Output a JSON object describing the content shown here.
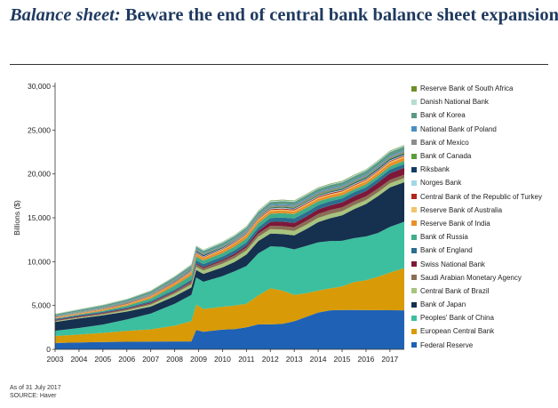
{
  "title": {
    "lead": "Balance sheet:",
    "rest": " Beware the end of central bank balance sheet expansion"
  },
  "footnotes": {
    "date": "As of 31 July 2017",
    "source": "SOURCE: Haver"
  },
  "chart_data": {
    "type": "area",
    "stacked": true,
    "title": "Balance sheet: Beware the end of central bank balance sheet expansion",
    "xlabel": "",
    "ylabel": "Billions ($)",
    "ylim": [
      0,
      30000
    ],
    "yticks": [
      0,
      5000,
      10000,
      15000,
      20000,
      25000,
      30000
    ],
    "ytick_labels": [
      "0",
      "5,000",
      "10,000",
      "15,000",
      "20,000",
      "25,000",
      "30,000"
    ],
    "xlim": [
      2003,
      2017.6
    ],
    "xticks": [
      2003,
      2004,
      2005,
      2006,
      2007,
      2008,
      2009,
      2010,
      2011,
      2012,
      2013,
      2014,
      2015,
      2016,
      2017
    ],
    "xtick_labels": [
      "2003",
      "2004",
      "2005",
      "2006",
      "2007",
      "2008",
      "2009",
      "2010",
      "2011",
      "2012",
      "2013",
      "2014",
      "2015",
      "2016",
      "2017"
    ],
    "x": [
      2003,
      2004,
      2005,
      2006,
      2007,
      2008,
      2008.7,
      2008.9,
      2009.2,
      2010,
      2010.5,
      2011,
      2011.5,
      2012,
      2012.5,
      2013,
      2013.5,
      2014,
      2014.5,
      2015,
      2015.5,
      2016,
      2016.5,
      2017,
      2017.6
    ],
    "legend_position": "right",
    "series": [
      {
        "name": "Federal Reserve",
        "color": "#1f62b5",
        "values": [
          720,
          780,
          830,
          860,
          880,
          900,
          900,
          2200,
          2000,
          2250,
          2300,
          2500,
          2850,
          2850,
          2900,
          3200,
          3700,
          4200,
          4450,
          4480,
          4480,
          4470,
          4470,
          4460,
          4450
        ]
      },
      {
        "name": "European Central Bank",
        "color": "#d89a07",
        "values": [
          800,
          900,
          1050,
          1250,
          1400,
          1800,
          2300,
          2900,
          2600,
          2600,
          2700,
          2700,
          3300,
          4100,
          3800,
          3000,
          2700,
          2500,
          2500,
          2700,
          3200,
          3400,
          3800,
          4300,
          4800
        ]
      },
      {
        "name": "Peoples' Bank of China",
        "color": "#3bbf9f",
        "values": [
          600,
          750,
          950,
          1300,
          1800,
          2500,
          3000,
          3100,
          3100,
          3500,
          3900,
          4300,
          4800,
          4800,
          5000,
          5200,
          5400,
          5500,
          5400,
          5200,
          5000,
          5000,
          5000,
          5200,
          5300
        ]
      },
      {
        "name": "Bank of Japan",
        "color": "#16304f",
        "values": [
          1000,
          1100,
          1050,
          900,
          800,
          850,
          850,
          850,
          900,
          1000,
          1050,
          1300,
          1400,
          1450,
          1450,
          1600,
          1900,
          2300,
          2600,
          2900,
          3300,
          3700,
          4200,
          4500,
          4500
        ]
      },
      {
        "name": "Central Bank of Brazil",
        "color": "#a7c47e",
        "values": [
          80,
          90,
          110,
          150,
          220,
          300,
          350,
          370,
          380,
          420,
          450,
          480,
          500,
          500,
          500,
          500,
          500,
          490,
          480,
          470,
          460,
          450,
          450,
          460,
          470
        ]
      },
      {
        "name": "Saudi Arabian Monetary Agency",
        "color": "#8a6e55",
        "values": [
          60,
          70,
          90,
          110,
          150,
          200,
          250,
          270,
          270,
          280,
          300,
          320,
          360,
          380,
          400,
          420,
          440,
          450,
          450,
          450,
          440,
          420,
          410,
          400,
          400
        ]
      },
      {
        "name": "Swiss National Bank",
        "color": "#7d1839",
        "values": [
          80,
          80,
          80,
          80,
          80,
          80,
          100,
          120,
          120,
          150,
          200,
          220,
          300,
          450,
          500,
          500,
          500,
          520,
          530,
          550,
          580,
          600,
          680,
          750,
          780
        ]
      },
      {
        "name": "Bank of England",
        "color": "#2b6e8f",
        "values": [
          130,
          130,
          130,
          140,
          160,
          180,
          200,
          350,
          350,
          380,
          390,
          380,
          400,
          450,
          480,
          500,
          500,
          490,
          480,
          470,
          450,
          440,
          430,
          420,
          420
        ]
      },
      {
        "name": "Bank of Russia",
        "color": "#3fae8a",
        "values": [
          40,
          60,
          100,
          180,
          300,
          450,
          500,
          420,
          400,
          400,
          420,
          450,
          480,
          480,
          500,
          500,
          480,
          420,
          380,
          340,
          320,
          330,
          350,
          360,
          370
        ]
      },
      {
        "name": "Reserve Bank of India",
        "color": "#e8902a",
        "values": [
          70,
          90,
          110,
          140,
          190,
          260,
          300,
          280,
          270,
          300,
          320,
          330,
          320,
          310,
          300,
          300,
          300,
          300,
          310,
          320,
          330,
          340,
          360,
          380,
          390
        ]
      },
      {
        "name": "Reserve Bank of Australia",
        "color": "#f2c46b",
        "values": [
          40,
          45,
          50,
          55,
          60,
          70,
          80,
          80,
          80,
          90,
          95,
          100,
          105,
          110,
          110,
          115,
          120,
          120,
          120,
          120,
          120,
          125,
          130,
          140,
          140
        ]
      },
      {
        "name": "Central Bank of the Republic of Turkey",
        "color": "#b3261e",
        "values": [
          35,
          40,
          50,
          60,
          70,
          80,
          80,
          75,
          75,
          85,
          90,
          95,
          100,
          105,
          110,
          115,
          115,
          110,
          110,
          105,
          100,
          100,
          100,
          100,
          100
        ]
      },
      {
        "name": "Norges Bank",
        "color": "#9fd8e6",
        "values": [
          30,
          30,
          30,
          35,
          40,
          60,
          100,
          90,
          80,
          70,
          70,
          70,
          80,
          90,
          90,
          90,
          90,
          90,
          90,
          90,
          90,
          90,
          90,
          90,
          90
        ]
      },
      {
        "name": "Riksbank",
        "color": "#123c66",
        "values": [
          25,
          25,
          25,
          30,
          30,
          40,
          70,
          120,
          110,
          80,
          60,
          60,
          60,
          70,
          70,
          70,
          70,
          70,
          80,
          90,
          100,
          110,
          120,
          120,
          120
        ]
      },
      {
        "name": "Bank of Canada",
        "color": "#5a9d3a",
        "values": [
          40,
          40,
          45,
          45,
          50,
          55,
          60,
          70,
          70,
          65,
          65,
          65,
          70,
          75,
          80,
          85,
          90,
          95,
          100,
          100,
          100,
          100,
          100,
          100,
          100
        ]
      },
      {
        "name": "Bank of Mexico",
        "color": "#8c8c8c",
        "values": [
          60,
          70,
          80,
          90,
          100,
          110,
          120,
          120,
          110,
          120,
          130,
          140,
          150,
          160,
          170,
          180,
          190,
          190,
          190,
          180,
          170,
          170,
          170,
          170,
          170
        ]
      },
      {
        "name": "National Bank of Poland",
        "color": "#4b8fc0",
        "values": [
          30,
          35,
          40,
          45,
          50,
          60,
          70,
          70,
          65,
          70,
          80,
          85,
          90,
          95,
          100,
          100,
          100,
          100,
          95,
          95,
          95,
          95,
          95,
          95,
          95
        ]
      },
      {
        "name": "Bank of Korea",
        "color": "#5c9a86",
        "values": [
          150,
          170,
          190,
          210,
          230,
          240,
          240,
          230,
          240,
          260,
          270,
          280,
          300,
          320,
          330,
          340,
          350,
          360,
          370,
          380,
          390,
          400,
          410,
          420,
          430
        ]
      },
      {
        "name": "Danish National Bank",
        "color": "#b5ddd1",
        "values": [
          40,
          45,
          50,
          55,
          60,
          70,
          80,
          90,
          100,
          100,
          100,
          110,
          120,
          130,
          120,
          110,
          110,
          100,
          100,
          110,
          130,
          120,
          120,
          120,
          120
        ]
      },
      {
        "name": "Reserve Bank of South Africa",
        "color": "#6e8f2b",
        "values": [
          15,
          18,
          20,
          22,
          25,
          30,
          35,
          35,
          35,
          40,
          45,
          50,
          55,
          55,
          55,
          55,
          55,
          55,
          55,
          55,
          55,
          55,
          55,
          55,
          55
        ]
      }
    ]
  }
}
